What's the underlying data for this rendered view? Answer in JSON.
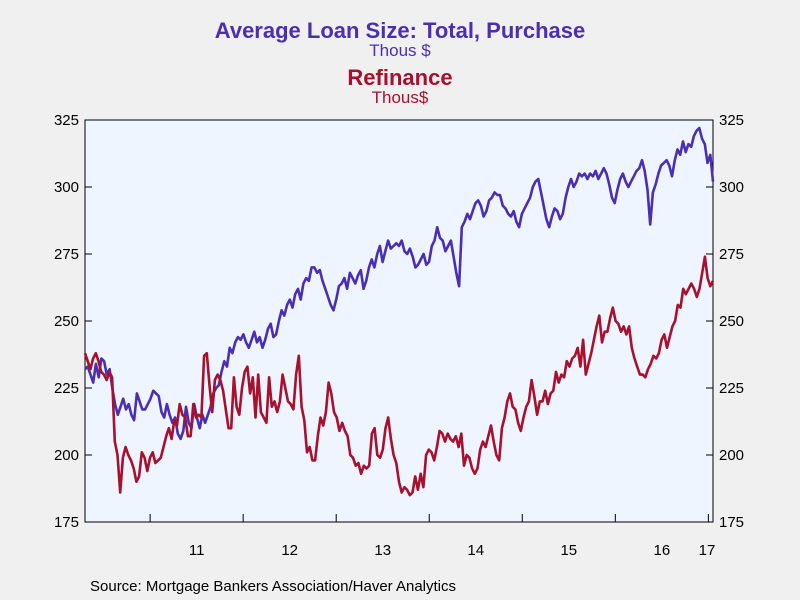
{
  "chart_data": {
    "type": "line",
    "title": "Average Loan Size: Total, Purchase",
    "title_unit": "Thous $",
    "subtitle": "Refinance",
    "subtitle_unit": "Thous$",
    "source": "Source:  Mortgage Bankers Association/Haver Analytics",
    "y_ticks": [
      "325",
      "300",
      "275",
      "250",
      "225",
      "200",
      "175"
    ],
    "x_tick_labels": [
      "11",
      "12",
      "13",
      "14",
      "15",
      "16",
      "17"
    ],
    "ylim": [
      175,
      325
    ],
    "xlim": [
      2010.3,
      2017.05
    ],
    "plot_background": "#eef5ff",
    "series": [
      {
        "color": "#4a2fb4",
        "x_start": 2010.3,
        "x_end": 2017.05,
        "values": [
          232,
          233,
          230,
          227,
          234,
          229,
          236,
          235,
          230,
          232,
          225,
          219,
          215,
          218,
          221,
          217,
          219,
          215,
          213,
          223,
          220,
          217,
          217,
          219,
          221,
          224,
          223,
          222,
          216,
          214,
          219,
          215,
          212,
          214,
          208,
          206,
          209,
          218,
          212,
          210,
          219,
          214,
          210,
          215,
          212,
          215,
          218,
          223,
          225,
          226,
          231,
          235,
          233,
          240,
          238,
          242,
          244,
          243,
          245,
          242,
          240,
          243,
          246,
          242,
          244,
          240,
          243,
          247,
          249,
          244,
          245,
          250,
          254,
          252,
          256,
          258,
          255,
          260,
          262,
          258,
          264,
          266,
          265,
          270,
          270,
          268,
          269,
          265,
          262,
          259,
          256,
          254,
          258,
          263,
          264,
          266,
          262,
          268,
          266,
          264,
          267,
          269,
          262,
          265,
          270,
          273,
          270,
          275,
          278,
          272,
          276,
          280,
          277,
          278,
          279,
          278,
          280,
          276,
          275,
          277,
          274,
          270,
          271,
          273,
          275,
          271,
          272,
          278,
          280,
          285,
          281,
          280,
          276,
          278,
          280,
          274,
          268,
          263,
          285,
          287,
          290,
          288,
          291,
          294,
          295,
          293,
          289,
          291,
          295,
          296,
          298,
          297,
          297,
          293,
          292,
          290,
          289,
          291,
          287,
          285,
          290,
          292,
          294,
          296,
          300,
          302,
          303,
          298,
          293,
          288,
          285,
          289,
          292,
          291,
          288,
          290,
          296,
          300,
          303,
          300,
          302,
          305,
          304,
          305,
          303,
          305,
          304,
          306,
          303,
          305,
          307,
          305,
          301,
          296,
          294,
          299,
          303,
          305,
          302,
          300,
          302,
          304,
          306,
          307,
          310,
          306,
          299,
          286,
          298,
          301,
          305,
          308,
          309,
          310,
          308,
          304,
          310,
          314,
          312,
          317,
          313,
          316,
          315,
          319,
          321,
          322,
          318,
          316,
          309,
          312,
          302
        ]
      },
      {
        "color": "#a8102e",
        "x_start": 2010.3,
        "x_end": 2017.05,
        "values": [
          238,
          235,
          232,
          236,
          238,
          235,
          231,
          230,
          228,
          231,
          229,
          205,
          200,
          186,
          199,
          203,
          200,
          198,
          195,
          190,
          192,
          201,
          199,
          194,
          199,
          201,
          197,
          198,
          199,
          203,
          207,
          210,
          206,
          213,
          211,
          219,
          215,
          214,
          207,
          207,
          219,
          214,
          215,
          214,
          237,
          238,
          226,
          216,
          228,
          230,
          228,
          224,
          217,
          210,
          210,
          229,
          218,
          215,
          225,
          231,
          233,
          223,
          229,
          214,
          230,
          216,
          214,
          212,
          229,
          218,
          220,
          216,
          220,
          230,
          225,
          220,
          219,
          217,
          230,
          237,
          218,
          213,
          201,
          203,
          198,
          198,
          207,
          214,
          211,
          216,
          227,
          223,
          216,
          214,
          209,
          212,
          209,
          207,
          200,
          199,
          196,
          197,
          193,
          196,
          195,
          196,
          208,
          210,
          200,
          199,
          202,
          210,
          214,
          206,
          200,
          197,
          190,
          186,
          188,
          187,
          185,
          186,
          192,
          187,
          193,
          188,
          200,
          202,
          201,
          198,
          203,
          209,
          208,
          205,
          208,
          206,
          205,
          207,
          203,
          208,
          196,
          200,
          199,
          195,
          193,
          195,
          202,
          205,
          203,
          207,
          211,
          205,
          200,
          198,
          210,
          214,
          220,
          223,
          218,
          217,
          212,
          209,
          214,
          218,
          220,
          228,
          222,
          215,
          220,
          220,
          224,
          219,
          223,
          224,
          231,
          227,
          230,
          229,
          235,
          233,
          236,
          237,
          240,
          233,
          243,
          230,
          234,
          238,
          243,
          248,
          252,
          242,
          246,
          246,
          251,
          255,
          250,
          249,
          246,
          248,
          245,
          248,
          240,
          236,
          233,
          230,
          230,
          229,
          232,
          234,
          237,
          236,
          238,
          243,
          245,
          240,
          244,
          248,
          250,
          256,
          255,
          262,
          260,
          262,
          264,
          262,
          259,
          262,
          268,
          274,
          266,
          263,
          265
        ]
      }
    ]
  }
}
